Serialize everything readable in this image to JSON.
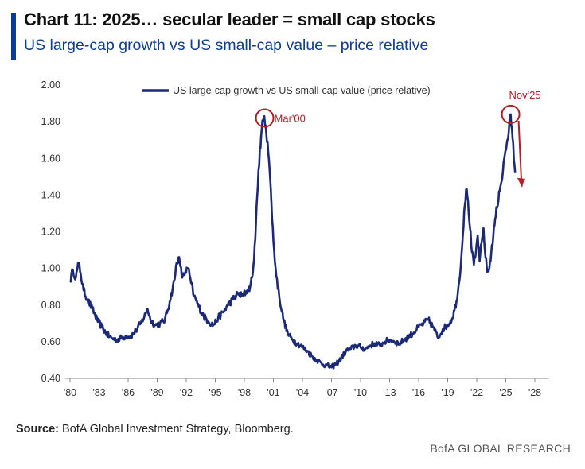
{
  "header": {
    "title": "Chart 11: 2025… secular leader = small cap stocks",
    "subtitle": "US large-cap growth vs US small-cap value – price relative"
  },
  "footer": {
    "source_label": "Source:",
    "source_text": "BofA Global Investment Strategy, Bloomberg.",
    "brand": "BofA GLOBAL RESEARCH"
  },
  "colors": {
    "line": "#1b2a78",
    "accent": "#0b3d91",
    "annotation": "#b01f24"
  },
  "chart_data": {
    "type": "line",
    "title": "US large-cap growth vs US small-cap value – price relative",
    "xlabel": "",
    "ylabel": "",
    "xlim": [
      1980,
      2028
    ],
    "ylim": [
      0.4,
      2.0
    ],
    "y_ticks": [
      0.4,
      0.6,
      0.8,
      1.0,
      1.2,
      1.4,
      1.6,
      1.8,
      2.0
    ],
    "y_tick_labels": [
      "0.40",
      "0.60",
      "0.80",
      "1.00",
      "1.20",
      "1.40",
      "1.60",
      "1.80",
      "2.00"
    ],
    "x_ticks": [
      1980,
      1983,
      1986,
      1989,
      1992,
      1995,
      1998,
      2001,
      2004,
      2007,
      2010,
      2013,
      2016,
      2019,
      2022,
      2025,
      2028
    ],
    "x_tick_labels": [
      "'80",
      "'83",
      "'86",
      "'89",
      "'92",
      "'95",
      "'98",
      "'01",
      "'04",
      "'07",
      "'10",
      "'13",
      "'16",
      "'19",
      "'22",
      "'25",
      "'28"
    ],
    "legend": {
      "position": "top-center",
      "entries": [
        "US large-cap growth vs US small-cap value (price relative)"
      ]
    },
    "series": [
      {
        "name": "US large-cap growth vs US small-cap value (price relative)",
        "x": [
          1980.0,
          1980.3,
          1980.6,
          1980.9,
          1981.1,
          1981.4,
          1981.8,
          1982.3,
          1982.8,
          1983.3,
          1983.8,
          1984.3,
          1984.8,
          1985.3,
          1985.8,
          1986.3,
          1986.8,
          1987.3,
          1987.8,
          1988.0,
          1988.3,
          1988.8,
          1989.3,
          1989.8,
          1990.3,
          1990.8,
          1991.0,
          1991.2,
          1991.4,
          1991.6,
          1991.9,
          1992.2,
          1992.5,
          1992.8,
          1993.3,
          1993.8,
          1994.3,
          1994.8,
          1995.3,
          1995.8,
          1996.3,
          1996.8,
          1997.3,
          1997.8,
          1998.3,
          1998.6,
          1998.8,
          1999.0,
          1999.2,
          1999.4,
          1999.6,
          1999.8,
          2000.0,
          2000.2,
          2000.4,
          2000.6,
          2000.8,
          2001.0,
          2001.3,
          2001.6,
          2002.0,
          2002.5,
          2003.0,
          2003.5,
          2004.0,
          2004.5,
          2005.0,
          2005.5,
          2006.0,
          2006.5,
          2007.0,
          2007.5,
          2008.0,
          2008.5,
          2009.0,
          2009.5,
          2010.0,
          2010.5,
          2011.0,
          2011.5,
          2012.0,
          2012.5,
          2013.0,
          2013.5,
          2014.0,
          2014.5,
          2015.0,
          2015.5,
          2016.0,
          2016.5,
          2017.0,
          2017.5,
          2018.0,
          2018.5,
          2019.0,
          2019.5,
          2019.9,
          2020.2,
          2020.5,
          2020.7,
          2020.9,
          2021.1,
          2021.3,
          2021.5,
          2021.7,
          2021.9,
          2022.1,
          2022.3,
          2022.5,
          2022.7,
          2022.9,
          2023.1,
          2023.3,
          2023.5,
          2023.7,
          2023.9,
          2024.1,
          2024.3,
          2024.5,
          2024.7,
          2024.9,
          2025.1,
          2025.3,
          2025.5,
          2025.7,
          2025.9,
          2026.0
        ],
        "values": [
          0.93,
          0.99,
          0.95,
          1.03,
          0.97,
          0.88,
          0.83,
          0.78,
          0.72,
          0.68,
          0.64,
          0.62,
          0.61,
          0.62,
          0.63,
          0.63,
          0.66,
          0.7,
          0.75,
          0.78,
          0.72,
          0.69,
          0.7,
          0.72,
          0.82,
          0.94,
          1.03,
          1.06,
          1.01,
          0.95,
          0.98,
          1.0,
          0.92,
          0.85,
          0.79,
          0.74,
          0.71,
          0.69,
          0.73,
          0.76,
          0.8,
          0.83,
          0.86,
          0.85,
          0.88,
          0.9,
          0.95,
          1.05,
          1.25,
          1.45,
          1.65,
          1.76,
          1.82,
          1.78,
          1.69,
          1.55,
          1.35,
          1.15,
          0.96,
          0.85,
          0.73,
          0.64,
          0.61,
          0.59,
          0.57,
          0.55,
          0.52,
          0.5,
          0.48,
          0.47,
          0.46,
          0.48,
          0.51,
          0.55,
          0.56,
          0.58,
          0.57,
          0.56,
          0.58,
          0.59,
          0.58,
          0.6,
          0.61,
          0.6,
          0.59,
          0.61,
          0.63,
          0.65,
          0.68,
          0.7,
          0.72,
          0.68,
          0.62,
          0.67,
          0.69,
          0.73,
          0.82,
          0.93,
          1.13,
          1.31,
          1.43,
          1.37,
          1.22,
          1.09,
          1.02,
          1.08,
          1.18,
          1.04,
          1.14,
          1.22,
          1.06,
          0.98,
          1.0,
          1.09,
          1.17,
          1.27,
          1.33,
          1.42,
          1.46,
          1.53,
          1.62,
          1.68,
          1.74,
          1.84,
          1.71,
          1.56,
          1.52
        ]
      }
    ],
    "annotations": [
      {
        "label": "Mar'00",
        "x": 2000.1,
        "y": 1.82,
        "type": "circle"
      },
      {
        "label": "Nov'25",
        "x": 2025.5,
        "y": 1.84,
        "type": "circle-arrow",
        "arrow_to": [
          2026.6,
          1.45
        ]
      }
    ]
  }
}
